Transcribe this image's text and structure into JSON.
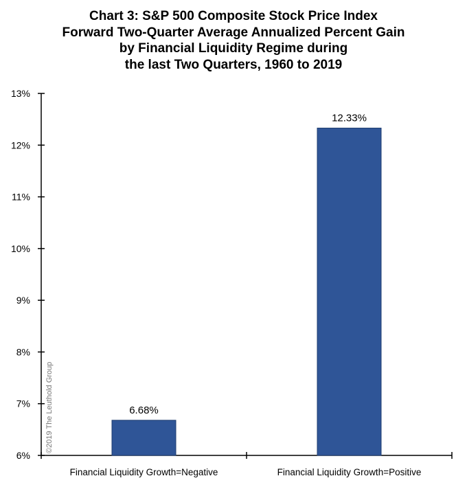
{
  "chart_data": {
    "type": "bar",
    "title_lines": [
      "Chart 3: S&P 500 Composite Stock Price Index",
      "Forward Two-Quarter Average Annualized Percent Gain",
      "by Financial Liquidity Regime during",
      "the last Two Quarters, 1960 to 2019"
    ],
    "categories": [
      "Financial Liquidity Growth=Negative",
      "Financial Liquidity Growth=Positive"
    ],
    "values": [
      6.68,
      12.33
    ],
    "data_labels": [
      "6.68%",
      "12.33%"
    ],
    "ylim": [
      6,
      13
    ],
    "yticks": [
      "6%",
      "7%",
      "8%",
      "9%",
      "10%",
      "11%",
      "12%",
      "13%"
    ],
    "xlabel": "",
    "ylabel": "",
    "grid": false,
    "bar_color": "#2F5597",
    "watermark": "©2019 The Leuthold Group"
  }
}
